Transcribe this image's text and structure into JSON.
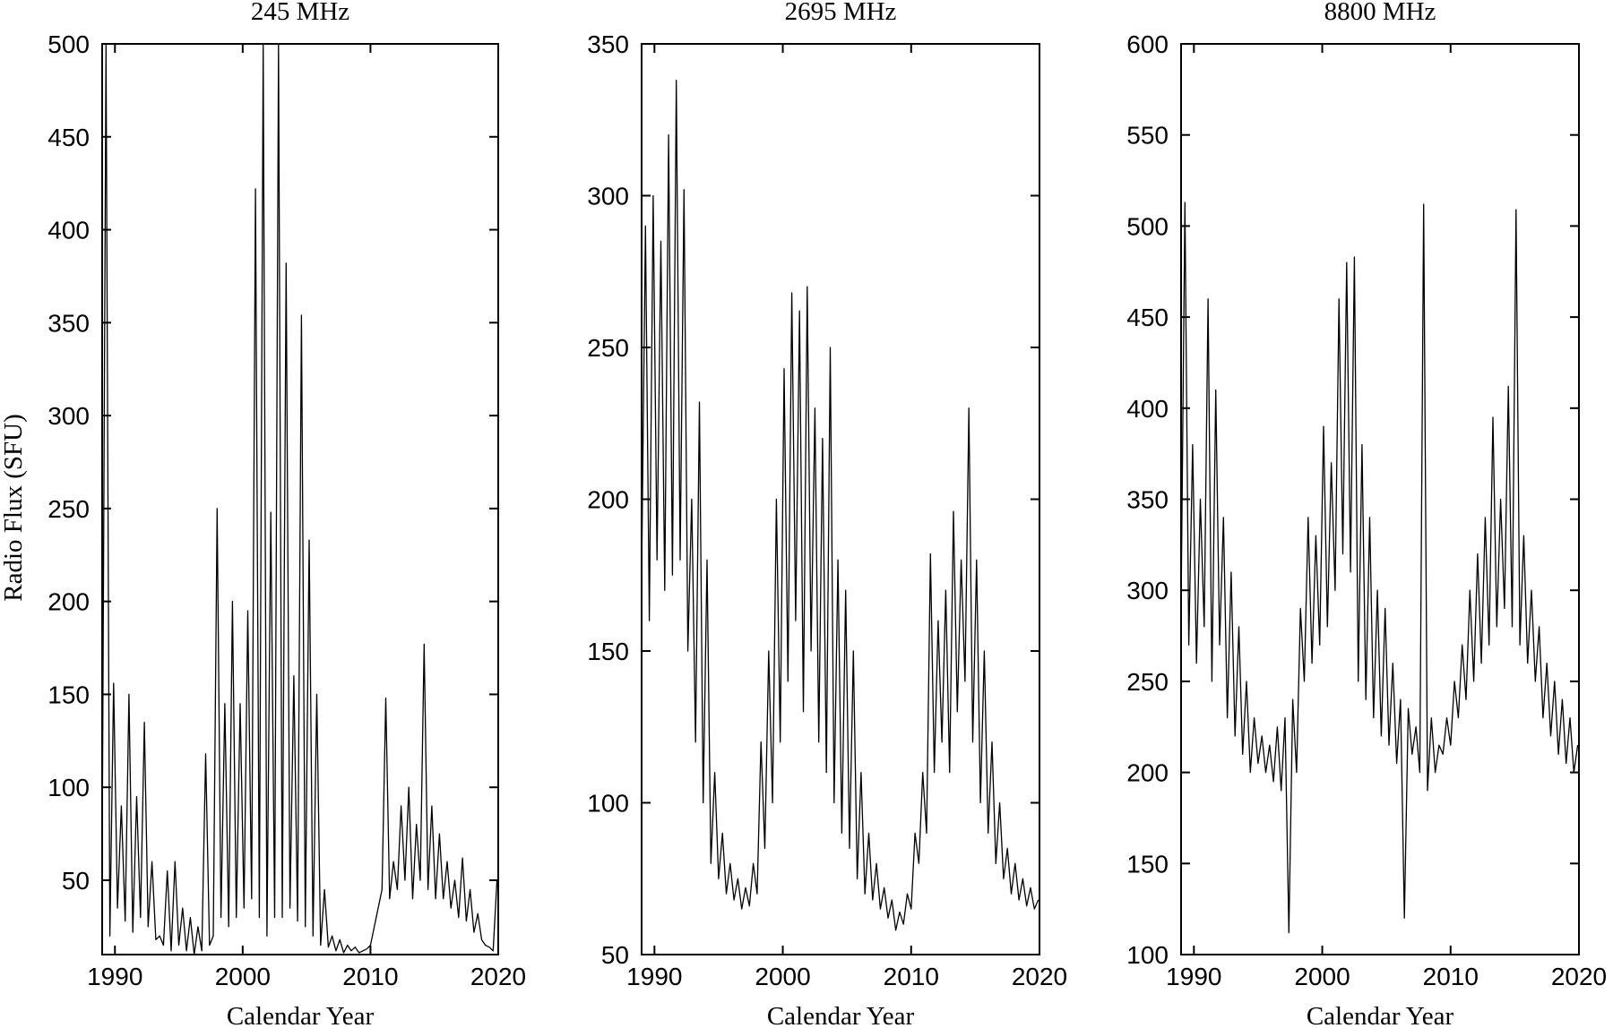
{
  "figure": {
    "ylabel": "Radio Flux (SFU)"
  },
  "chart_data": [
    {
      "type": "line",
      "title": "245 MHz",
      "xlabel": "Calendar Year",
      "ylabel": "Radio Flux (SFU)",
      "xlim": [
        1989,
        2020
      ],
      "ylim": [
        10,
        500
      ],
      "xticks": [
        "1990",
        "2000",
        "2010",
        "2020"
      ],
      "yticks": [
        "50",
        "100",
        "150",
        "200",
        "250",
        "300",
        "350",
        "400",
        "450",
        "500"
      ],
      "grid": false,
      "series": [
        {
          "x": [
            1989.0,
            1989.3,
            1989.6,
            1989.9,
            1990.2,
            1990.5,
            1990.8,
            1991.1,
            1991.4,
            1991.7,
            1992.0,
            1992.3,
            1992.6,
            1992.9,
            1993.2,
            1993.5,
            1993.8,
            1994.1,
            1994.4,
            1994.7,
            1995.0,
            1995.3,
            1995.6,
            1995.9,
            1996.2,
            1996.5,
            1996.8,
            1997.1,
            1997.4,
            1997.7,
            1998.0,
            1998.3,
            1998.6,
            1998.9,
            1999.2,
            1999.5,
            1999.8,
            2000.1,
            2000.4,
            2000.7,
            2001.0,
            2001.3,
            2001.6,
            2001.9,
            2002.2,
            2002.5,
            2002.8,
            2003.1,
            2003.4,
            2003.7,
            2004.0,
            2004.3,
            2004.6,
            2004.9,
            2005.2,
            2005.5,
            2005.8,
            2006.1,
            2006.4,
            2006.7,
            2007.0,
            2007.3,
            2007.6,
            2007.9,
            2008.2,
            2008.5,
            2008.8,
            2009.1,
            2009.4,
            2009.7,
            2010.0,
            2010.3,
            2010.6,
            2010.9,
            2011.2,
            2011.5,
            2011.8,
            2012.1,
            2012.4,
            2012.7,
            2013.0,
            2013.3,
            2013.6,
            2013.9,
            2014.2,
            2014.5,
            2014.8,
            2015.1,
            2015.4,
            2015.7,
            2016.0,
            2016.3,
            2016.6,
            2016.9,
            2017.2,
            2017.5,
            2017.8,
            2018.1,
            2018.4,
            2018.7,
            2019.0,
            2019.3,
            2019.6,
            2019.9
          ],
          "values": [
            60,
            500,
            20,
            156,
            35,
            90,
            28,
            150,
            22,
            95,
            30,
            135,
            25,
            60,
            18,
            20,
            15,
            55,
            12,
            60,
            15,
            35,
            12,
            30,
            10,
            25,
            12,
            118,
            15,
            20,
            250,
            30,
            145,
            25,
            200,
            30,
            145,
            35,
            195,
            40,
            422,
            30,
            500,
            20,
            248,
            30,
            500,
            30,
            382,
            35,
            160,
            28,
            354,
            25,
            233,
            20,
            150,
            15,
            45,
            14,
            20,
            12,
            18,
            11,
            15,
            12,
            14,
            11,
            12,
            13,
            15,
            25,
            35,
            45,
            148,
            40,
            60,
            45,
            90,
            50,
            100,
            40,
            80,
            50,
            177,
            45,
            90,
            40,
            75,
            40,
            60,
            35,
            50,
            30,
            62,
            28,
            45,
            22,
            32,
            18,
            15,
            14,
            12,
            50
          ]
        }
      ]
    },
    {
      "type": "line",
      "title": "2695 MHz",
      "xlabel": "Calendar Year",
      "ylabel": "",
      "xlim": [
        1989,
        2020
      ],
      "ylim": [
        50,
        350
      ],
      "xticks": [
        "1990",
        "2000",
        "2010",
        "2020"
      ],
      "yticks": [
        "50",
        "100",
        "150",
        "200",
        "250",
        "300",
        "350"
      ],
      "grid": false,
      "series": [
        {
          "x": [
            1989.0,
            1989.3,
            1989.6,
            1989.9,
            1990.2,
            1990.5,
            1990.8,
            1991.1,
            1991.4,
            1991.7,
            1992.0,
            1992.3,
            1992.6,
            1992.9,
            1993.2,
            1993.5,
            1993.8,
            1994.1,
            1994.4,
            1994.7,
            1995.0,
            1995.3,
            1995.6,
            1995.9,
            1996.2,
            1996.5,
            1996.8,
            1997.1,
            1997.4,
            1997.7,
            1998.0,
            1998.3,
            1998.6,
            1998.9,
            1999.2,
            1999.5,
            1999.8,
            2000.1,
            2000.4,
            2000.7,
            2001.0,
            2001.3,
            2001.6,
            2001.9,
            2002.2,
            2002.5,
            2002.8,
            2003.1,
            2003.4,
            2003.7,
            2004.0,
            2004.3,
            2004.6,
            2004.9,
            2005.2,
            2005.5,
            2005.8,
            2006.1,
            2006.4,
            2006.7,
            2007.0,
            2007.3,
            2007.6,
            2007.9,
            2008.2,
            2008.5,
            2008.8,
            2009.1,
            2009.4,
            2009.7,
            2010.0,
            2010.3,
            2010.6,
            2010.9,
            2011.2,
            2011.5,
            2011.8,
            2012.1,
            2012.4,
            2012.7,
            2013.0,
            2013.3,
            2013.6,
            2013.9,
            2014.2,
            2014.5,
            2014.8,
            2015.1,
            2015.4,
            2015.7,
            2016.0,
            2016.3,
            2016.6,
            2016.9,
            2017.2,
            2017.5,
            2017.8,
            2018.1,
            2018.4,
            2018.7,
            2019.0,
            2019.3,
            2019.6,
            2019.9
          ],
          "values": [
            175,
            290,
            160,
            300,
            180,
            285,
            170,
            320,
            175,
            338,
            180,
            302,
            150,
            200,
            120,
            232,
            100,
            180,
            80,
            110,
            75,
            90,
            70,
            80,
            68,
            75,
            65,
            72,
            66,
            80,
            70,
            120,
            85,
            150,
            100,
            200,
            120,
            243,
            140,
            268,
            160,
            262,
            130,
            270,
            150,
            230,
            120,
            220,
            110,
            250,
            100,
            180,
            90,
            170,
            85,
            150,
            75,
            110,
            70,
            90,
            68,
            80,
            65,
            72,
            62,
            68,
            58,
            64,
            60,
            70,
            65,
            90,
            80,
            110,
            90,
            182,
            110,
            160,
            120,
            170,
            110,
            196,
            130,
            180,
            140,
            230,
            120,
            180,
            100,
            150,
            90,
            120,
            80,
            100,
            75,
            85,
            70,
            80,
            68,
            75,
            66,
            72,
            65,
            68
          ]
        }
      ]
    },
    {
      "type": "line",
      "title": "8800 MHz",
      "xlabel": "Calendar Year",
      "ylabel": "",
      "xlim": [
        1989,
        2020
      ],
      "ylim": [
        100,
        600
      ],
      "xticks": [
        "1990",
        "2000",
        "2010",
        "2020"
      ],
      "yticks": [
        "100",
        "150",
        "200",
        "250",
        "300",
        "350",
        "400",
        "450",
        "500",
        "550",
        "600"
      ],
      "grid": false,
      "series": [
        {
          "x": [
            1989.0,
            1989.3,
            1989.6,
            1989.9,
            1990.2,
            1990.5,
            1990.8,
            1991.1,
            1991.4,
            1991.7,
            1992.0,
            1992.3,
            1992.6,
            1992.9,
            1993.2,
            1993.5,
            1993.8,
            1994.1,
            1994.4,
            1994.7,
            1995.0,
            1995.3,
            1995.6,
            1995.9,
            1996.2,
            1996.5,
            1996.8,
            1997.1,
            1997.4,
            1997.7,
            1998.0,
            1998.3,
            1998.6,
            1998.9,
            1999.2,
            1999.5,
            1999.8,
            2000.1,
            2000.4,
            2000.7,
            2001.0,
            2001.3,
            2001.6,
            2001.9,
            2002.2,
            2002.5,
            2002.8,
            2003.1,
            2003.4,
            2003.7,
            2004.0,
            2004.3,
            2004.6,
            2004.9,
            2005.2,
            2005.5,
            2005.8,
            2006.1,
            2006.4,
            2006.7,
            2007.0,
            2007.3,
            2007.6,
            2007.9,
            2008.2,
            2008.5,
            2008.8,
            2009.1,
            2009.4,
            2009.7,
            2010.0,
            2010.3,
            2010.6,
            2010.9,
            2011.2,
            2011.5,
            2011.8,
            2012.1,
            2012.4,
            2012.7,
            2013.0,
            2013.3,
            2013.6,
            2013.9,
            2014.2,
            2014.5,
            2014.8,
            2015.1,
            2015.4,
            2015.7,
            2016.0,
            2016.3,
            2016.6,
            2016.9,
            2017.2,
            2017.5,
            2017.8,
            2018.1,
            2018.4,
            2018.7,
            2019.0,
            2019.3,
            2019.6,
            2019.9
          ],
          "values": [
            290,
            513,
            270,
            380,
            260,
            350,
            280,
            460,
            250,
            410,
            270,
            340,
            230,
            310,
            220,
            280,
            210,
            250,
            200,
            230,
            205,
            220,
            200,
            215,
            195,
            225,
            190,
            230,
            112,
            240,
            200,
            290,
            250,
            340,
            260,
            330,
            270,
            390,
            280,
            370,
            300,
            460,
            320,
            480,
            310,
            483,
            250,
            380,
            240,
            340,
            230,
            300,
            220,
            290,
            215,
            260,
            205,
            240,
            120,
            235,
            210,
            225,
            200,
            512,
            190,
            230,
            200,
            215,
            210,
            230,
            215,
            250,
            230,
            270,
            240,
            300,
            250,
            320,
            260,
            340,
            270,
            395,
            280,
            350,
            290,
            412,
            280,
            509,
            270,
            330,
            260,
            300,
            250,
            280,
            230,
            260,
            220,
            250,
            210,
            240,
            205,
            230,
            200,
            215
          ]
        }
      ]
    }
  ]
}
